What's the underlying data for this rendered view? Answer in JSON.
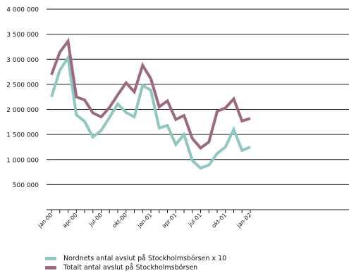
{
  "chart_data": {
    "type": "line",
    "x": [
      "jan-00",
      "feb-00",
      "mar-00",
      "apr-00",
      "maj-00",
      "jun-00",
      "jul-00",
      "aug-00",
      "sep-00",
      "okt-00",
      "nov-00",
      "dec-00",
      "jan-01",
      "feb-01",
      "mar-01",
      "apr-01",
      "maj-01",
      "jun-01",
      "jul-01",
      "aug-01",
      "sep-01",
      "okt-01",
      "nov-01",
      "dec-01",
      "jan-02"
    ],
    "x_tick_labels": [
      "jan-00",
      "apr-00",
      "jul-00",
      "okt-00",
      "jan-01",
      "apr-01",
      "jul-01",
      "okt-01",
      "jan-02"
    ],
    "y_tick_labels": [
      "4 000 000",
      "3 500 000",
      "3 000 000",
      "2 500 000",
      "2 000 000",
      "1 500 000",
      "1 000 000",
      "500 000"
    ],
    "ylim": [
      0,
      4000000
    ],
    "grid": "horizontal",
    "legend_position": "bottom",
    "series": [
      {
        "name": "Nordnets antal avslut på Stockholmsbörsen x 10",
        "color": "#8fc8c0",
        "values": [
          2250000,
          2780000,
          3030000,
          1890000,
          1760000,
          1450000,
          1580000,
          1840000,
          2110000,
          1940000,
          1850000,
          2480000,
          2380000,
          1630000,
          1680000,
          1300000,
          1500000,
          980000,
          830000,
          890000,
          1120000,
          1250000,
          1600000,
          1180000,
          1250000
        ]
      },
      {
        "name": "Totalt antal avslut på Stockholmsbörsen",
        "color": "#9b6a80",
        "values": [
          2690000,
          3140000,
          3360000,
          2250000,
          2190000,
          1930000,
          1850000,
          2040000,
          2290000,
          2530000,
          2350000,
          2880000,
          2610000,
          2050000,
          2170000,
          1800000,
          1880000,
          1420000,
          1230000,
          1350000,
          1960000,
          2030000,
          2210000,
          1770000,
          1820000
        ]
      }
    ]
  }
}
